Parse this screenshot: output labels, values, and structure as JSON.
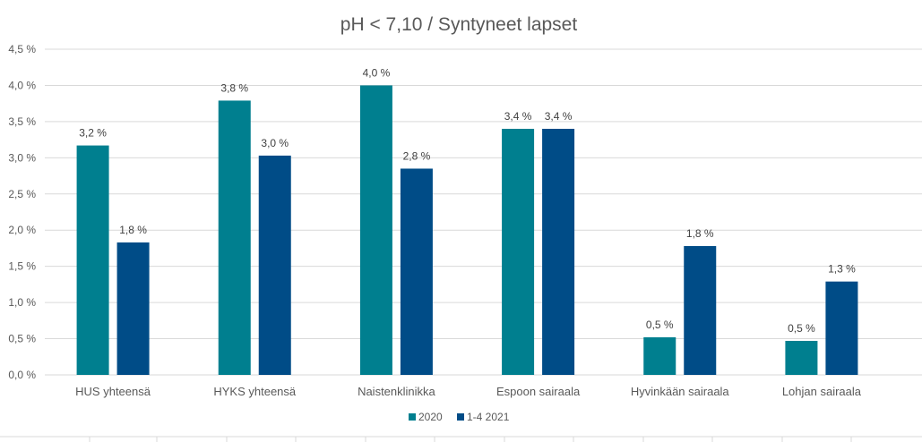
{
  "chart_data": {
    "type": "bar",
    "title": "pH < 7,10 / Syntyneet lapset",
    "categories": [
      "HUS yhteensä",
      "HYKS yhteensä",
      "Naistenklinikka",
      "Espoon sairaala",
      "Hyvinkään sairaala",
      "Lohjan sairaala"
    ],
    "series": [
      {
        "name": "2020",
        "color": "#007f8f",
        "values": [
          3.17,
          3.79,
          4.0,
          3.4,
          0.52,
          0.47
        ],
        "labels": [
          "3,2 %",
          "3,8 %",
          "4,0 %",
          "3,4 %",
          "0,5 %",
          "0,5 %"
        ]
      },
      {
        "name": "1-4 2021",
        "color": "#004c87",
        "values": [
          1.83,
          3.03,
          2.85,
          3.4,
          1.78,
          1.29
        ],
        "labels": [
          "1,8 %",
          "3,0 %",
          "2,8 %",
          "3,4 %",
          "1,8 %",
          "1,3 %"
        ]
      }
    ],
    "ylim": [
      0,
      4.5
    ],
    "yticks": [
      "0,0 %",
      "0,5 %",
      "1,0 %",
      "1,5 %",
      "2,0 %",
      "2,5 %",
      "3,0 %",
      "3,5 %",
      "4,0 %",
      "4,5 %"
    ],
    "grid": true,
    "legend_position": "bottom"
  }
}
